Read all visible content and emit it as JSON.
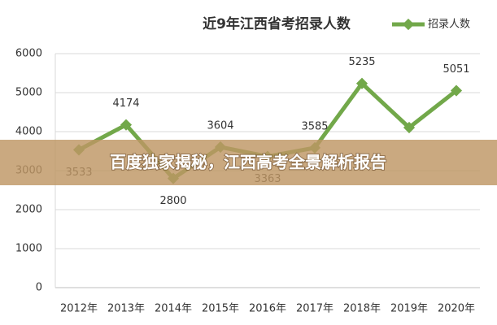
{
  "chart_data": {
    "type": "line",
    "title": "近9年江西省考招录人数",
    "categories": [
      "2012年",
      "2013年",
      "2014年",
      "2015年",
      "2016年",
      "2017年",
      "2018年",
      "2019年",
      "2020年"
    ],
    "series": [
      {
        "name": "招录人数",
        "color": "#72a84a",
        "values": [
          3533,
          4174,
          2800,
          3604,
          3363,
          3585,
          5235,
          4104,
          5051
        ],
        "value_labels": [
          "3533",
          "4174",
          "2800",
          "3604",
          "3363",
          "3585",
          "5235",
          null,
          "5051"
        ]
      }
    ],
    "ylim": [
      0,
      6000
    ],
    "yticks": [
      0,
      1000,
      2000,
      3000,
      4000,
      5000,
      6000
    ],
    "grid": true
  },
  "banner": {
    "text": "百度独家揭秘，江西高考全景解析报告"
  }
}
